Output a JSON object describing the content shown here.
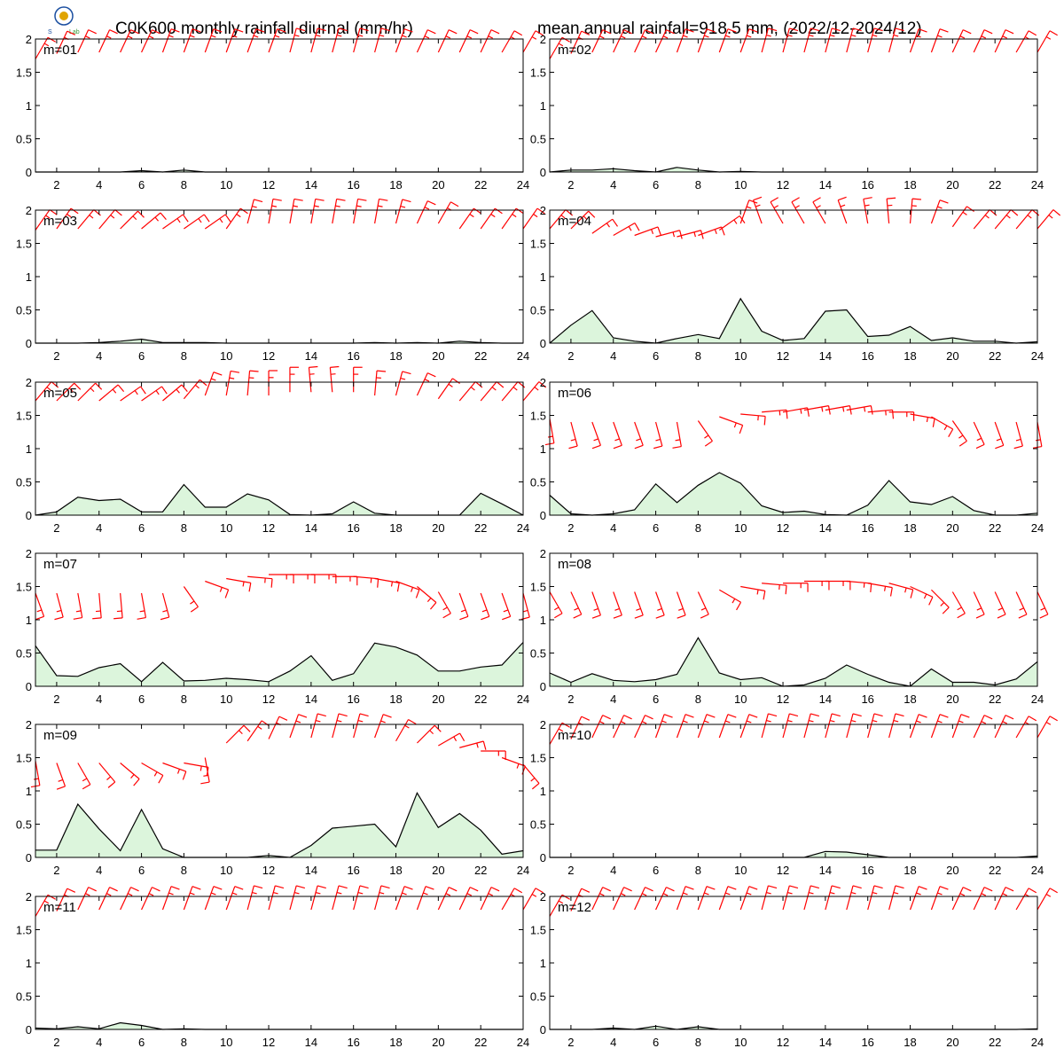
{
  "figure": {
    "title_left": "C0K600 monthly rainfall diurnal (mm/hr)",
    "title_right": "mean annual rainfall=918.5 mm, (2022/12-2024/12)",
    "logo": {
      "text": "Lab",
      "colors": [
        "#1b4fa0",
        "#e0a400",
        "#3a9a3a",
        "#d83030"
      ]
    }
  },
  "chart_data": {
    "type": "area",
    "xlim": [
      1,
      24
    ],
    "ylim": [
      0,
      2
    ],
    "xticks": [
      2,
      4,
      6,
      8,
      10,
      12,
      14,
      16,
      18,
      20,
      22,
      24
    ],
    "yticks": [
      0,
      0.5,
      1,
      1.5,
      2
    ],
    "ytick_labels": [
      "0",
      "0.5",
      "1",
      "1.5",
      "2"
    ],
    "grid": false,
    "colors": {
      "fill": "#dcf5dc",
      "line": "#000000",
      "wind": "#ff0000"
    },
    "panels": [
      {
        "label": "m=01",
        "values": [
          0,
          0,
          0,
          0,
          0,
          0.02,
          0,
          0.03,
          0,
          0,
          0,
          0,
          0,
          0,
          0,
          0,
          0,
          0,
          0,
          0,
          0,
          0,
          0,
          0
        ],
        "wind_y": [
          1.7,
          1.78,
          1.8,
          1.8,
          1.8,
          1.8,
          1.8,
          1.8,
          1.8,
          1.8,
          1.8,
          1.8,
          1.8,
          1.8,
          1.8,
          1.8,
          1.8,
          1.8,
          1.8,
          1.8,
          1.8,
          1.8,
          1.8,
          1.8
        ],
        "wind_dir": [
          30,
          25,
          25,
          25,
          25,
          25,
          20,
          20,
          20,
          20,
          20,
          20,
          15,
          15,
          15,
          15,
          15,
          20,
          25,
          25,
          25,
          25,
          30,
          30
        ]
      },
      {
        "label": "m=02",
        "values": [
          0,
          0.03,
          0.03,
          0.05,
          0.02,
          0,
          0.07,
          0.03,
          0,
          0.01,
          0,
          0,
          0,
          0,
          0,
          0,
          0,
          0,
          0,
          0,
          0,
          0,
          0,
          0
        ],
        "wind_y": [
          1.7,
          1.78,
          1.8,
          1.8,
          1.8,
          1.8,
          1.8,
          1.8,
          1.8,
          1.8,
          1.8,
          1.8,
          1.8,
          1.8,
          1.8,
          1.8,
          1.8,
          1.8,
          1.8,
          1.8,
          1.8,
          1.8,
          1.8,
          1.8
        ],
        "wind_dir": [
          30,
          25,
          25,
          25,
          25,
          25,
          20,
          20,
          20,
          20,
          15,
          15,
          15,
          15,
          15,
          15,
          15,
          20,
          20,
          25,
          25,
          25,
          30,
          30
        ]
      },
      {
        "label": "m=03",
        "values": [
          0,
          0,
          0,
          0.01,
          0.03,
          0.06,
          0.01,
          0.01,
          0.01,
          0,
          0,
          0,
          0,
          0,
          0,
          0,
          0.01,
          0,
          0.01,
          0,
          0.03,
          0.01,
          0,
          0
        ],
        "wind_y": [
          1.7,
          1.72,
          1.72,
          1.72,
          1.72,
          1.72,
          1.72,
          1.72,
          1.72,
          1.72,
          1.8,
          1.8,
          1.8,
          1.8,
          1.8,
          1.8,
          1.8,
          1.8,
          1.8,
          1.8,
          1.72,
          1.72,
          1.72,
          1.72
        ],
        "wind_dir": [
          35,
          35,
          40,
          40,
          45,
          50,
          55,
          55,
          55,
          35,
          15,
          10,
          10,
          10,
          10,
          10,
          10,
          15,
          25,
          30,
          35,
          35,
          35,
          35
        ]
      },
      {
        "label": "m=04",
        "values": [
          0,
          0.27,
          0.49,
          0.08,
          0.03,
          0,
          0.07,
          0.13,
          0.07,
          0.67,
          0.18,
          0.04,
          0.07,
          0.48,
          0.5,
          0.1,
          0.12,
          0.25,
          0.04,
          0.08,
          0.03,
          0.03,
          0,
          0.02
        ],
        "wind_y": [
          1.72,
          1.72,
          1.65,
          1.62,
          1.62,
          1.6,
          1.6,
          1.62,
          1.7,
          1.8,
          1.8,
          1.8,
          1.8,
          1.8,
          1.8,
          1.8,
          1.8,
          1.8,
          1.8,
          1.75,
          1.72,
          1.72,
          1.72,
          1.72
        ],
        "wind_dir": [
          40,
          45,
          55,
          60,
          70,
          75,
          75,
          70,
          55,
          20,
          340,
          330,
          330,
          330,
          340,
          350,
          355,
          5,
          20,
          35,
          40,
          40,
          40,
          40
        ]
      },
      {
        "label": "m=05",
        "values": [
          0,
          0.05,
          0.27,
          0.22,
          0.24,
          0.05,
          0.05,
          0.46,
          0.12,
          0.12,
          0.32,
          0.23,
          0.01,
          0,
          0.02,
          0.2,
          0.03,
          0,
          0,
          0,
          0,
          0.33,
          0.17,
          0
        ],
        "wind_y": [
          1.72,
          1.72,
          1.72,
          1.72,
          1.72,
          1.72,
          1.72,
          1.75,
          1.8,
          1.8,
          1.8,
          1.8,
          1.85,
          1.85,
          1.85,
          1.85,
          1.8,
          1.8,
          1.8,
          1.75,
          1.72,
          1.72,
          1.72,
          1.72
        ],
        "wind_dir": [
          40,
          45,
          45,
          50,
          55,
          55,
          50,
          40,
          20,
          10,
          5,
          0,
          0,
          355,
          355,
          0,
          5,
          15,
          25,
          35,
          40,
          40,
          40,
          40
        ]
      },
      {
        "label": "m=06",
        "values": [
          0.3,
          0.02,
          0,
          0.02,
          0.08,
          0.47,
          0.19,
          0.45,
          0.64,
          0.48,
          0.14,
          0.04,
          0.06,
          0.01,
          0,
          0.15,
          0.52,
          0.2,
          0.16,
          0.28,
          0.07,
          0,
          0,
          0.03
        ],
        "wind_y": [
          1.45,
          1.4,
          1.4,
          1.4,
          1.4,
          1.4,
          1.4,
          1.42,
          1.48,
          1.52,
          1.55,
          1.55,
          1.58,
          1.58,
          1.58,
          1.55,
          1.55,
          1.52,
          1.48,
          1.42,
          1.4,
          1.4,
          1.4,
          1.4
        ],
        "wind_dir": [
          170,
          165,
          160,
          160,
          160,
          165,
          170,
          145,
          110,
          95,
          85,
          80,
          80,
          80,
          80,
          85,
          90,
          100,
          120,
          145,
          155,
          160,
          165,
          170
        ]
      },
      {
        "label": "m=07",
        "values": [
          0.61,
          0.16,
          0.15,
          0.28,
          0.34,
          0.07,
          0.36,
          0.08,
          0.09,
          0.12,
          0.1,
          0.07,
          0.23,
          0.46,
          0.09,
          0.19,
          0.65,
          0.59,
          0.47,
          0.23,
          0.23,
          0.29,
          0.32,
          0.66
        ],
        "wind_y": [
          1.4,
          1.4,
          1.4,
          1.4,
          1.4,
          1.4,
          1.4,
          1.5,
          1.58,
          1.62,
          1.65,
          1.68,
          1.68,
          1.68,
          1.65,
          1.65,
          1.62,
          1.58,
          1.5,
          1.42,
          1.4,
          1.4,
          1.4,
          1.4
        ],
        "wind_dir": [
          160,
          165,
          170,
          175,
          175,
          170,
          165,
          145,
          110,
          100,
          95,
          90,
          90,
          90,
          90,
          95,
          100,
          110,
          130,
          150,
          160,
          160,
          160,
          165
        ]
      },
      {
        "label": "m=08",
        "values": [
          0.2,
          0.06,
          0.19,
          0.09,
          0.07,
          0.1,
          0.18,
          0.73,
          0.2,
          0.1,
          0.13,
          0,
          0.02,
          0.12,
          0.32,
          0.18,
          0.06,
          0,
          0.26,
          0.06,
          0.06,
          0.02,
          0.11,
          0.37
        ],
        "wind_y": [
          1.42,
          1.42,
          1.42,
          1.42,
          1.42,
          1.42,
          1.42,
          1.42,
          1.45,
          1.5,
          1.55,
          1.55,
          1.58,
          1.58,
          1.58,
          1.55,
          1.55,
          1.5,
          1.45,
          1.42,
          1.42,
          1.42,
          1.42,
          1.42
        ],
        "wind_dir": [
          150,
          155,
          160,
          160,
          160,
          160,
          160,
          155,
          120,
          100,
          95,
          90,
          90,
          90,
          95,
          100,
          105,
          115,
          135,
          150,
          155,
          155,
          155,
          155
        ]
      },
      {
        "label": "m=09",
        "values": [
          0.11,
          0.11,
          0.8,
          0.43,
          0.1,
          0.72,
          0.13,
          0,
          0,
          0,
          0,
          0.03,
          0,
          0.18,
          0.44,
          0.47,
          0.5,
          0.16,
          0.97,
          0.45,
          0.66,
          0.41,
          0.05,
          0.1
        ],
        "wind_y": [
          1.45,
          1.42,
          1.42,
          1.42,
          1.42,
          1.42,
          1.42,
          1.42,
          1.5,
          1.72,
          1.75,
          1.78,
          1.8,
          1.8,
          1.8,
          1.8,
          1.8,
          1.75,
          1.72,
          1.68,
          1.65,
          1.6,
          1.5,
          1.4
        ],
        "wind_dir": [
          170,
          160,
          150,
          140,
          130,
          120,
          110,
          100,
          170,
          45,
          35,
          25,
          20,
          15,
          15,
          15,
          20,
          30,
          45,
          60,
          75,
          90,
          110,
          140
        ]
      },
      {
        "label": "m=10",
        "values": [
          0,
          0,
          0,
          0,
          0,
          0,
          0,
          0,
          0,
          0,
          0,
          0,
          0,
          0.09,
          0.08,
          0.04,
          0,
          0,
          0,
          0,
          0,
          0,
          0,
          0.02
        ],
        "wind_y": [
          1.7,
          1.78,
          1.8,
          1.8,
          1.8,
          1.8,
          1.8,
          1.8,
          1.8,
          1.8,
          1.8,
          1.8,
          1.8,
          1.8,
          1.8,
          1.8,
          1.8,
          1.8,
          1.8,
          1.8,
          1.8,
          1.8,
          1.8,
          1.8
        ],
        "wind_dir": [
          30,
          25,
          25,
          25,
          25,
          20,
          20,
          20,
          20,
          20,
          15,
          15,
          15,
          15,
          15,
          15,
          15,
          20,
          20,
          20,
          25,
          25,
          30,
          30
        ]
      },
      {
        "label": "m=11",
        "values": [
          0.02,
          0.01,
          0.04,
          0.01,
          0.1,
          0.06,
          0,
          0.01,
          0,
          0,
          0,
          0,
          0,
          0,
          0,
          0,
          0,
          0,
          0,
          0,
          0,
          0,
          0,
          0
        ],
        "wind_y": [
          1.7,
          1.78,
          1.8,
          1.8,
          1.8,
          1.8,
          1.8,
          1.8,
          1.8,
          1.8,
          1.8,
          1.8,
          1.8,
          1.8,
          1.8,
          1.8,
          1.8,
          1.8,
          1.8,
          1.8,
          1.8,
          1.8,
          1.8,
          1.8
        ],
        "wind_dir": [
          30,
          25,
          25,
          25,
          25,
          25,
          20,
          20,
          20,
          20,
          15,
          15,
          15,
          15,
          15,
          15,
          15,
          20,
          20,
          25,
          25,
          25,
          30,
          30
        ]
      },
      {
        "label": "m=12",
        "values": [
          0,
          0,
          0,
          0.02,
          0,
          0.05,
          0,
          0.04,
          0,
          0,
          0,
          0,
          0,
          0,
          0,
          0,
          0,
          0,
          0,
          0,
          0,
          0,
          0,
          0.01
        ],
        "wind_y": [
          1.7,
          1.78,
          1.8,
          1.8,
          1.8,
          1.8,
          1.8,
          1.8,
          1.8,
          1.8,
          1.8,
          1.8,
          1.8,
          1.8,
          1.8,
          1.8,
          1.8,
          1.8,
          1.8,
          1.8,
          1.8,
          1.8,
          1.8,
          1.8
        ],
        "wind_dir": [
          30,
          25,
          25,
          25,
          25,
          25,
          20,
          20,
          20,
          20,
          15,
          15,
          15,
          15,
          15,
          15,
          15,
          20,
          20,
          25,
          25,
          25,
          30,
          30
        ]
      }
    ]
  }
}
